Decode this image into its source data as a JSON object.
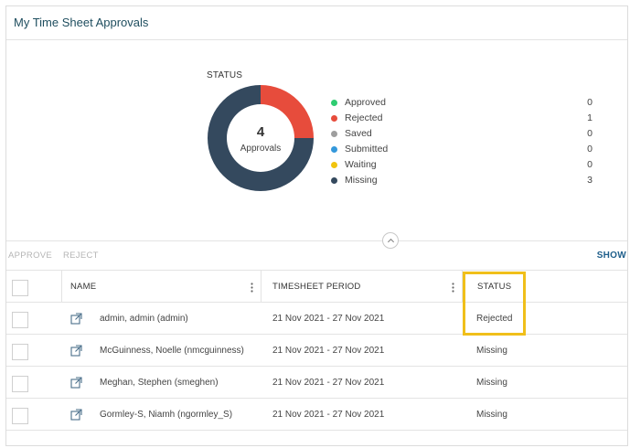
{
  "panel": {
    "title": "My Time Sheet Approvals"
  },
  "chart_data": {
    "type": "pie",
    "title": "STATUS",
    "center_count": "4",
    "center_label": "Approvals",
    "categories": [
      "Approved",
      "Rejected",
      "Saved",
      "Submitted",
      "Waiting",
      "Missing"
    ],
    "values": [
      0,
      1,
      0,
      0,
      0,
      3
    ],
    "colors": [
      "#2ecc71",
      "#e74c3c",
      "#9e9e9e",
      "#3498db",
      "#f1c40f",
      "#34495e"
    ],
    "legend_position": "right"
  },
  "toolbar": {
    "approve_label": "APPROVE",
    "reject_label": "REJECT",
    "show_label": "SHOW"
  },
  "table": {
    "headers": {
      "name": "NAME",
      "period": "TIMESHEET PERIOD",
      "status": "STATUS"
    },
    "rows": [
      {
        "name": "admin, admin (admin)",
        "period": "21 Nov 2021 - 27 Nov 2021",
        "status": "Rejected"
      },
      {
        "name": "McGuinness, Noelle (nmcguinness)",
        "period": "21 Nov 2021 - 27 Nov 2021",
        "status": "Missing"
      },
      {
        "name": "Meghan, Stephen (smeghen)",
        "period": "21 Nov 2021 - 27 Nov 2021",
        "status": "Missing"
      },
      {
        "name": "Gormley-S, Niamh (ngormley_S)",
        "period": "21 Nov 2021 - 27 Nov 2021",
        "status": "Missing"
      }
    ]
  },
  "icons": {
    "row_link": "open-external-icon",
    "column_menu": "kebab-menu-icon",
    "collapse": "chevron-up-icon"
  },
  "highlight_color": "#f0bf1a"
}
